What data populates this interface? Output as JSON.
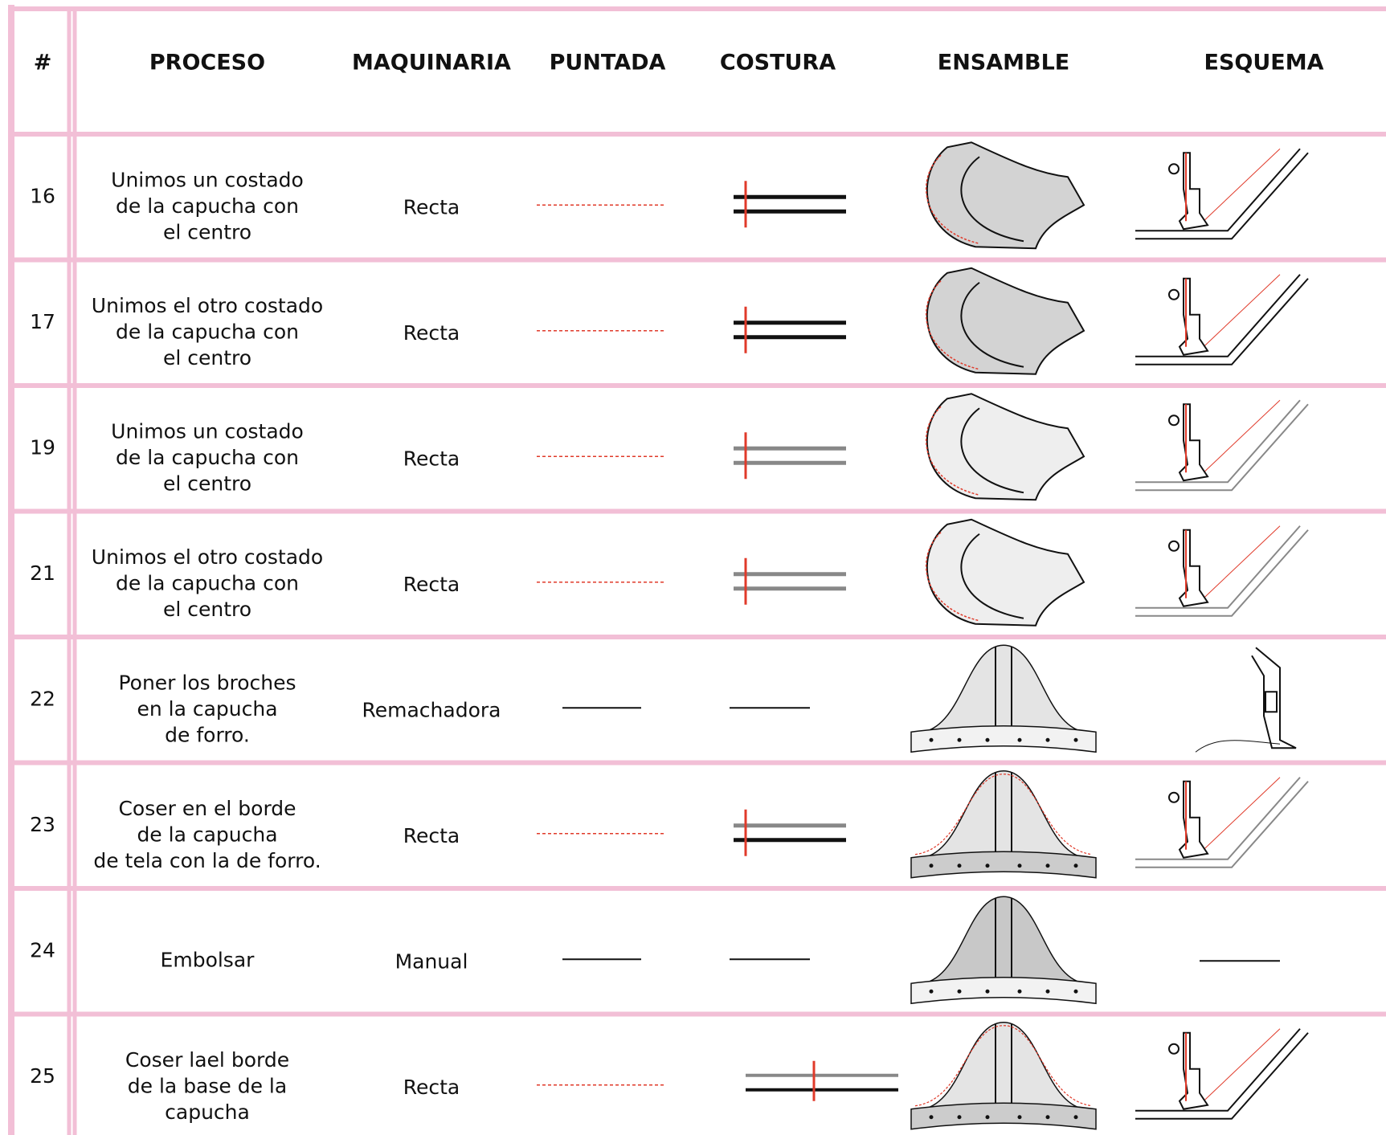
{
  "header": [
    "#",
    "PROCESO",
    "MAQUINARIA",
    "PUNTADA",
    "COSTURA",
    "ENSAMBLE",
    "ESQUEMA"
  ],
  "rows": [
    {
      "number": "16",
      "process": [
        "Unimos un costado",
        "de la capucha con",
        "el centro"
      ],
      "machine": "Recta"
    },
    {
      "number": "17",
      "process": [
        "Unimos el otro costado",
        "de la capucha con",
        "el centro"
      ],
      "machine": "Recta"
    },
    {
      "number": "19",
      "process": [
        "Unimos un costado",
        "de la capucha con",
        "el centro"
      ],
      "machine": "Recta"
    },
    {
      "number": "21",
      "process": [
        "Unimos el otro costado",
        "de la capucha con",
        "el centro"
      ],
      "machine": "Recta"
    },
    {
      "number": "22",
      "process": [
        "Poner los broches",
        "en la capucha",
        "de forro."
      ],
      "machine": "Remachadora"
    },
    {
      "number": "23",
      "process": [
        "Coser en el borde",
        "de la capucha",
        "de tela con la de forro."
      ],
      "machine": "Recta"
    },
    {
      "number": "24",
      "process": [
        "Embolsar"
      ],
      "machine": "Manual"
    },
    {
      "number": "25",
      "process": [
        "Coser lael borde",
        "de la base de la",
        "capucha"
      ],
      "machine": "Recta"
    }
  ]
}
